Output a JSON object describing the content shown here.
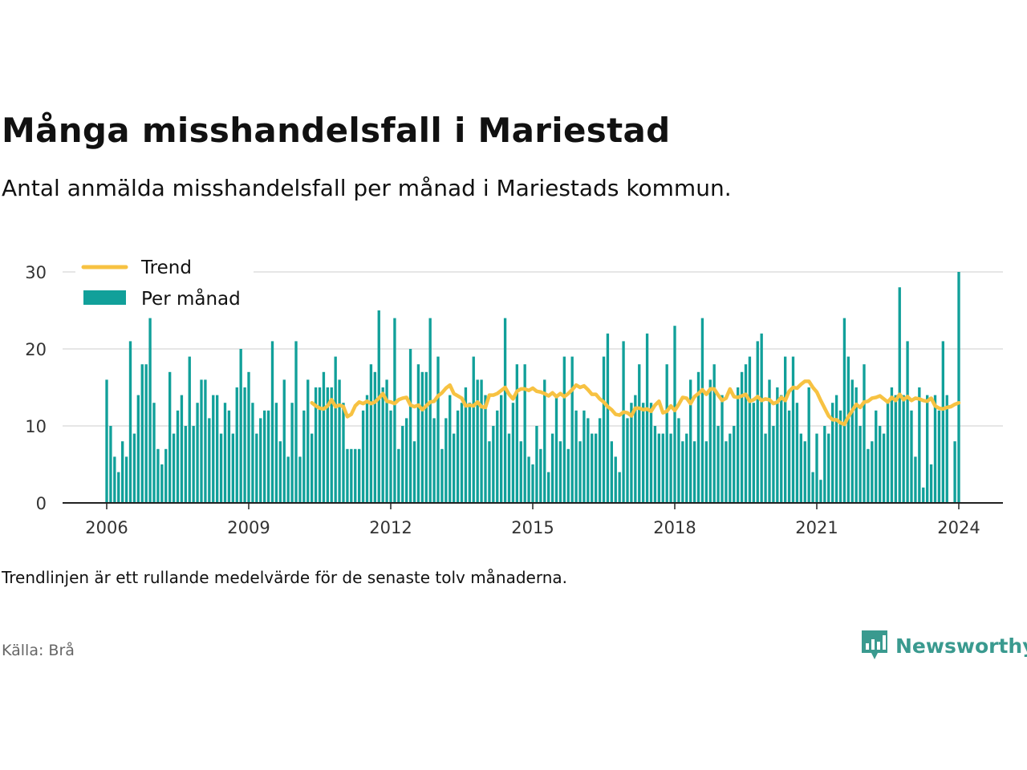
{
  "title": "Många misshandelsfall i Mariestad",
  "subtitle": "Antal anmälda misshandelsfall per månad i Mariestads kommun.",
  "note": "Trendlinjen är ett rullande medelvärde för de senaste tolv månaderna.",
  "source": "Källa: Brå",
  "brand": {
    "name": "Newsworthy"
  },
  "colors": {
    "bar": "#11a09a",
    "trend": "#f7c242",
    "brand": "#3a9a8f",
    "grid": "#dddddd",
    "axis": "#222222"
  },
  "chart_data": {
    "type": "bar",
    "legend_position": "top-left",
    "grid": true,
    "ylim": [
      0,
      30
    ],
    "yticks": [
      0,
      10,
      20,
      30
    ],
    "xticks": [
      2006,
      2009,
      2012,
      2015,
      2018,
      2021,
      2024
    ],
    "x_start": "2006-01",
    "x_end": "2024-01",
    "series": [
      {
        "name": "Per månad",
        "values": [
          16,
          10,
          6,
          4,
          8,
          6,
          21,
          9,
          14,
          18,
          18,
          24,
          13,
          7,
          5,
          7,
          17,
          9,
          12,
          14,
          10,
          19,
          10,
          13,
          16,
          16,
          11,
          14,
          14,
          9,
          13,
          12,
          9,
          15,
          20,
          15,
          17,
          13,
          9,
          11,
          12,
          12,
          21,
          13,
          8,
          16,
          6,
          13,
          21,
          6,
          12,
          16,
          9,
          15,
          15,
          17,
          15,
          15,
          19,
          16,
          13,
          7,
          7,
          7,
          7,
          12,
          14,
          18,
          17,
          25,
          15,
          16,
          12,
          24,
          7,
          10,
          11,
          20,
          8,
          18,
          17,
          17,
          24,
          11,
          19,
          7,
          11,
          14,
          9,
          12,
          13,
          15,
          13,
          19,
          16,
          16,
          14,
          8,
          10,
          12,
          14,
          24,
          9,
          13,
          18,
          8,
          18,
          6,
          5,
          10,
          7,
          16,
          4,
          9,
          14,
          8,
          19,
          7,
          19,
          12,
          8,
          12,
          11,
          9,
          9,
          11,
          19,
          22,
          8,
          6,
          4,
          21,
          11,
          13,
          14,
          18,
          13,
          22,
          13,
          10,
          9,
          9,
          18,
          9,
          23,
          11,
          8,
          9,
          16,
          8,
          17,
          24,
          8,
          16,
          18,
          10,
          14,
          8,
          9,
          10,
          15,
          17,
          18,
          19,
          13,
          21,
          22,
          9,
          16,
          10,
          15,
          14,
          19,
          12,
          19,
          13,
          9,
          8,
          15,
          4,
          9,
          3,
          10,
          9,
          13,
          14,
          12,
          24,
          19,
          16,
          15,
          10,
          18,
          7,
          8,
          12,
          10,
          9,
          13,
          15,
          14,
          28,
          14,
          21,
          12,
          6,
          15,
          2,
          14,
          5,
          14,
          12,
          21,
          14,
          0,
          8,
          30
        ]
      },
      {
        "name": "Trend",
        "values": [
          13,
          12.6,
          12.3,
          12.2,
          12.6,
          13.4,
          12.5,
          12.7,
          12.5,
          11.2,
          11.5,
          12.6,
          13.1,
          12.9,
          13.2,
          12.9,
          13.1,
          13.6,
          14.2,
          13.2,
          13.1,
          12.9,
          13.4,
          13.6,
          13.7,
          12.7,
          12.5,
          12.7,
          12.1,
          12.6,
          13.1,
          13.2,
          13.9,
          14.3,
          14.9,
          15.3,
          14.2,
          13.9,
          13.6,
          12.6,
          12.7,
          12.6,
          13.1,
          12.5,
          12.4,
          14,
          14,
          14.2,
          14.6,
          15,
          14.1,
          13.5,
          14.5,
          14.8,
          14.8,
          14.6,
          14.9,
          14.5,
          14.4,
          14.2,
          13.9,
          14.3,
          13.8,
          14.2,
          13.8,
          14.2,
          14.7,
          15.3,
          15,
          15.2,
          14.7,
          14.1,
          14.1,
          13.5,
          13.1,
          12.5,
          12.1,
          11.5,
          11.4,
          11.8,
          11.7,
          11.3,
          12.3,
          12.3,
          12.1,
          12.2,
          11.9,
          12.7,
          13.2,
          11.7,
          11.9,
          12.6,
          12,
          12.8,
          13.7,
          13.6,
          12.9,
          13.8,
          14.2,
          14.7,
          14.1,
          14.8,
          14.8,
          14,
          13.3,
          13.6,
          14.8,
          13.8,
          13.7,
          13.9,
          14.1,
          13.2,
          13.4,
          13.8,
          13.3,
          13.5,
          13.4,
          12.9,
          13.1,
          13.7,
          13.3,
          14.5,
          15,
          14.9,
          15.4,
          15.8,
          15.8,
          15,
          14.4,
          13.3,
          12.3,
          11.3,
          10.8,
          10.8,
          10.4,
          10.2,
          11.2,
          12,
          12.8,
          12.4,
          13.1,
          13.2,
          13.6,
          13.7,
          13.9,
          13.5,
          13.1,
          13.7,
          13.3,
          14.1,
          13.4,
          13.8,
          13.3,
          13.6,
          13.5,
          13.3,
          13.2,
          13.6,
          12.6,
          12.3,
          12.2,
          12.4,
          12.5,
          12.8,
          13
        ]
      }
    ]
  }
}
